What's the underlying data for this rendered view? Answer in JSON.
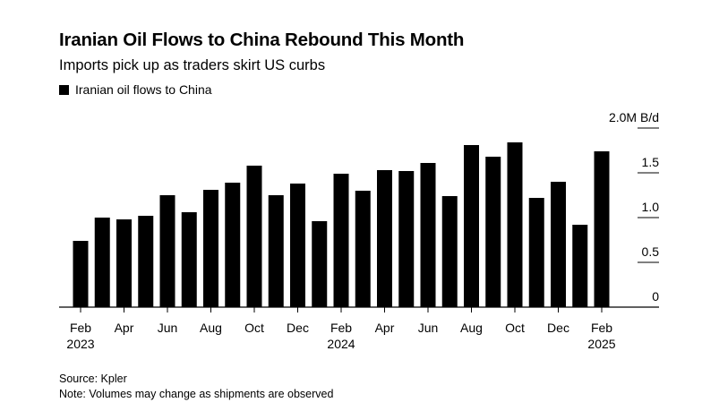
{
  "chart_data": {
    "type": "bar",
    "title": "Iranian Oil Flows to China Rebound This Month",
    "subtitle": "Imports pick up as traders skirt US curbs",
    "series": [
      {
        "name": "Iranian oil flows to China",
        "color": "#000000",
        "values": [
          0.74,
          1.0,
          0.98,
          1.02,
          1.25,
          1.06,
          1.31,
          1.39,
          1.58,
          1.25,
          1.38,
          0.96,
          1.49,
          1.3,
          1.53,
          1.52,
          1.61,
          1.24,
          1.81,
          1.68,
          1.84,
          1.22,
          1.4,
          0.92,
          1.74
        ]
      }
    ],
    "categories": [
      "Feb 2023",
      "Mar 2023",
      "Apr 2023",
      "May 2023",
      "Jun 2023",
      "Jul 2023",
      "Aug 2023",
      "Sep 2023",
      "Oct 2023",
      "Nov 2023",
      "Dec 2023",
      "Jan 2024",
      "Feb 2024",
      "Mar 2024",
      "Apr 2024",
      "May 2024",
      "Jun 2024",
      "Jul 2024",
      "Aug 2024",
      "Sep 2024",
      "Oct 2024",
      "Nov 2024",
      "Dec 2024",
      "Jan 2025",
      "Feb 2025"
    ],
    "x_tick_labels": [
      {
        "index": 0,
        "month": "Feb",
        "year": "2023"
      },
      {
        "index": 2,
        "month": "Apr"
      },
      {
        "index": 4,
        "month": "Jun"
      },
      {
        "index": 6,
        "month": "Aug"
      },
      {
        "index": 8,
        "month": "Oct"
      },
      {
        "index": 10,
        "month": "Dec"
      },
      {
        "index": 12,
        "month": "Feb",
        "year": "2024"
      },
      {
        "index": 14,
        "month": "Apr"
      },
      {
        "index": 16,
        "month": "Jun"
      },
      {
        "index": 18,
        "month": "Aug"
      },
      {
        "index": 20,
        "month": "Oct"
      },
      {
        "index": 22,
        "month": "Dec"
      },
      {
        "index": 24,
        "month": "Feb",
        "year": "2025"
      }
    ],
    "y_ticks": [
      {
        "value": 2.0,
        "label": "2.0M B/d"
      },
      {
        "value": 1.5,
        "label": "1.5"
      },
      {
        "value": 1.0,
        "label": "1.0"
      },
      {
        "value": 0.5,
        "label": "0.5"
      },
      {
        "value": 0,
        "label": "0"
      }
    ],
    "ylim": [
      0,
      2.0
    ],
    "ylabel": "M B/d",
    "xlabel": "",
    "legend_position": "top-left",
    "grid": false
  },
  "legend": {
    "label": "Iranian oil flows to China"
  },
  "footer": {
    "source": "Source: Kpler",
    "note": "Note: Volumes may change as shipments are observed"
  }
}
